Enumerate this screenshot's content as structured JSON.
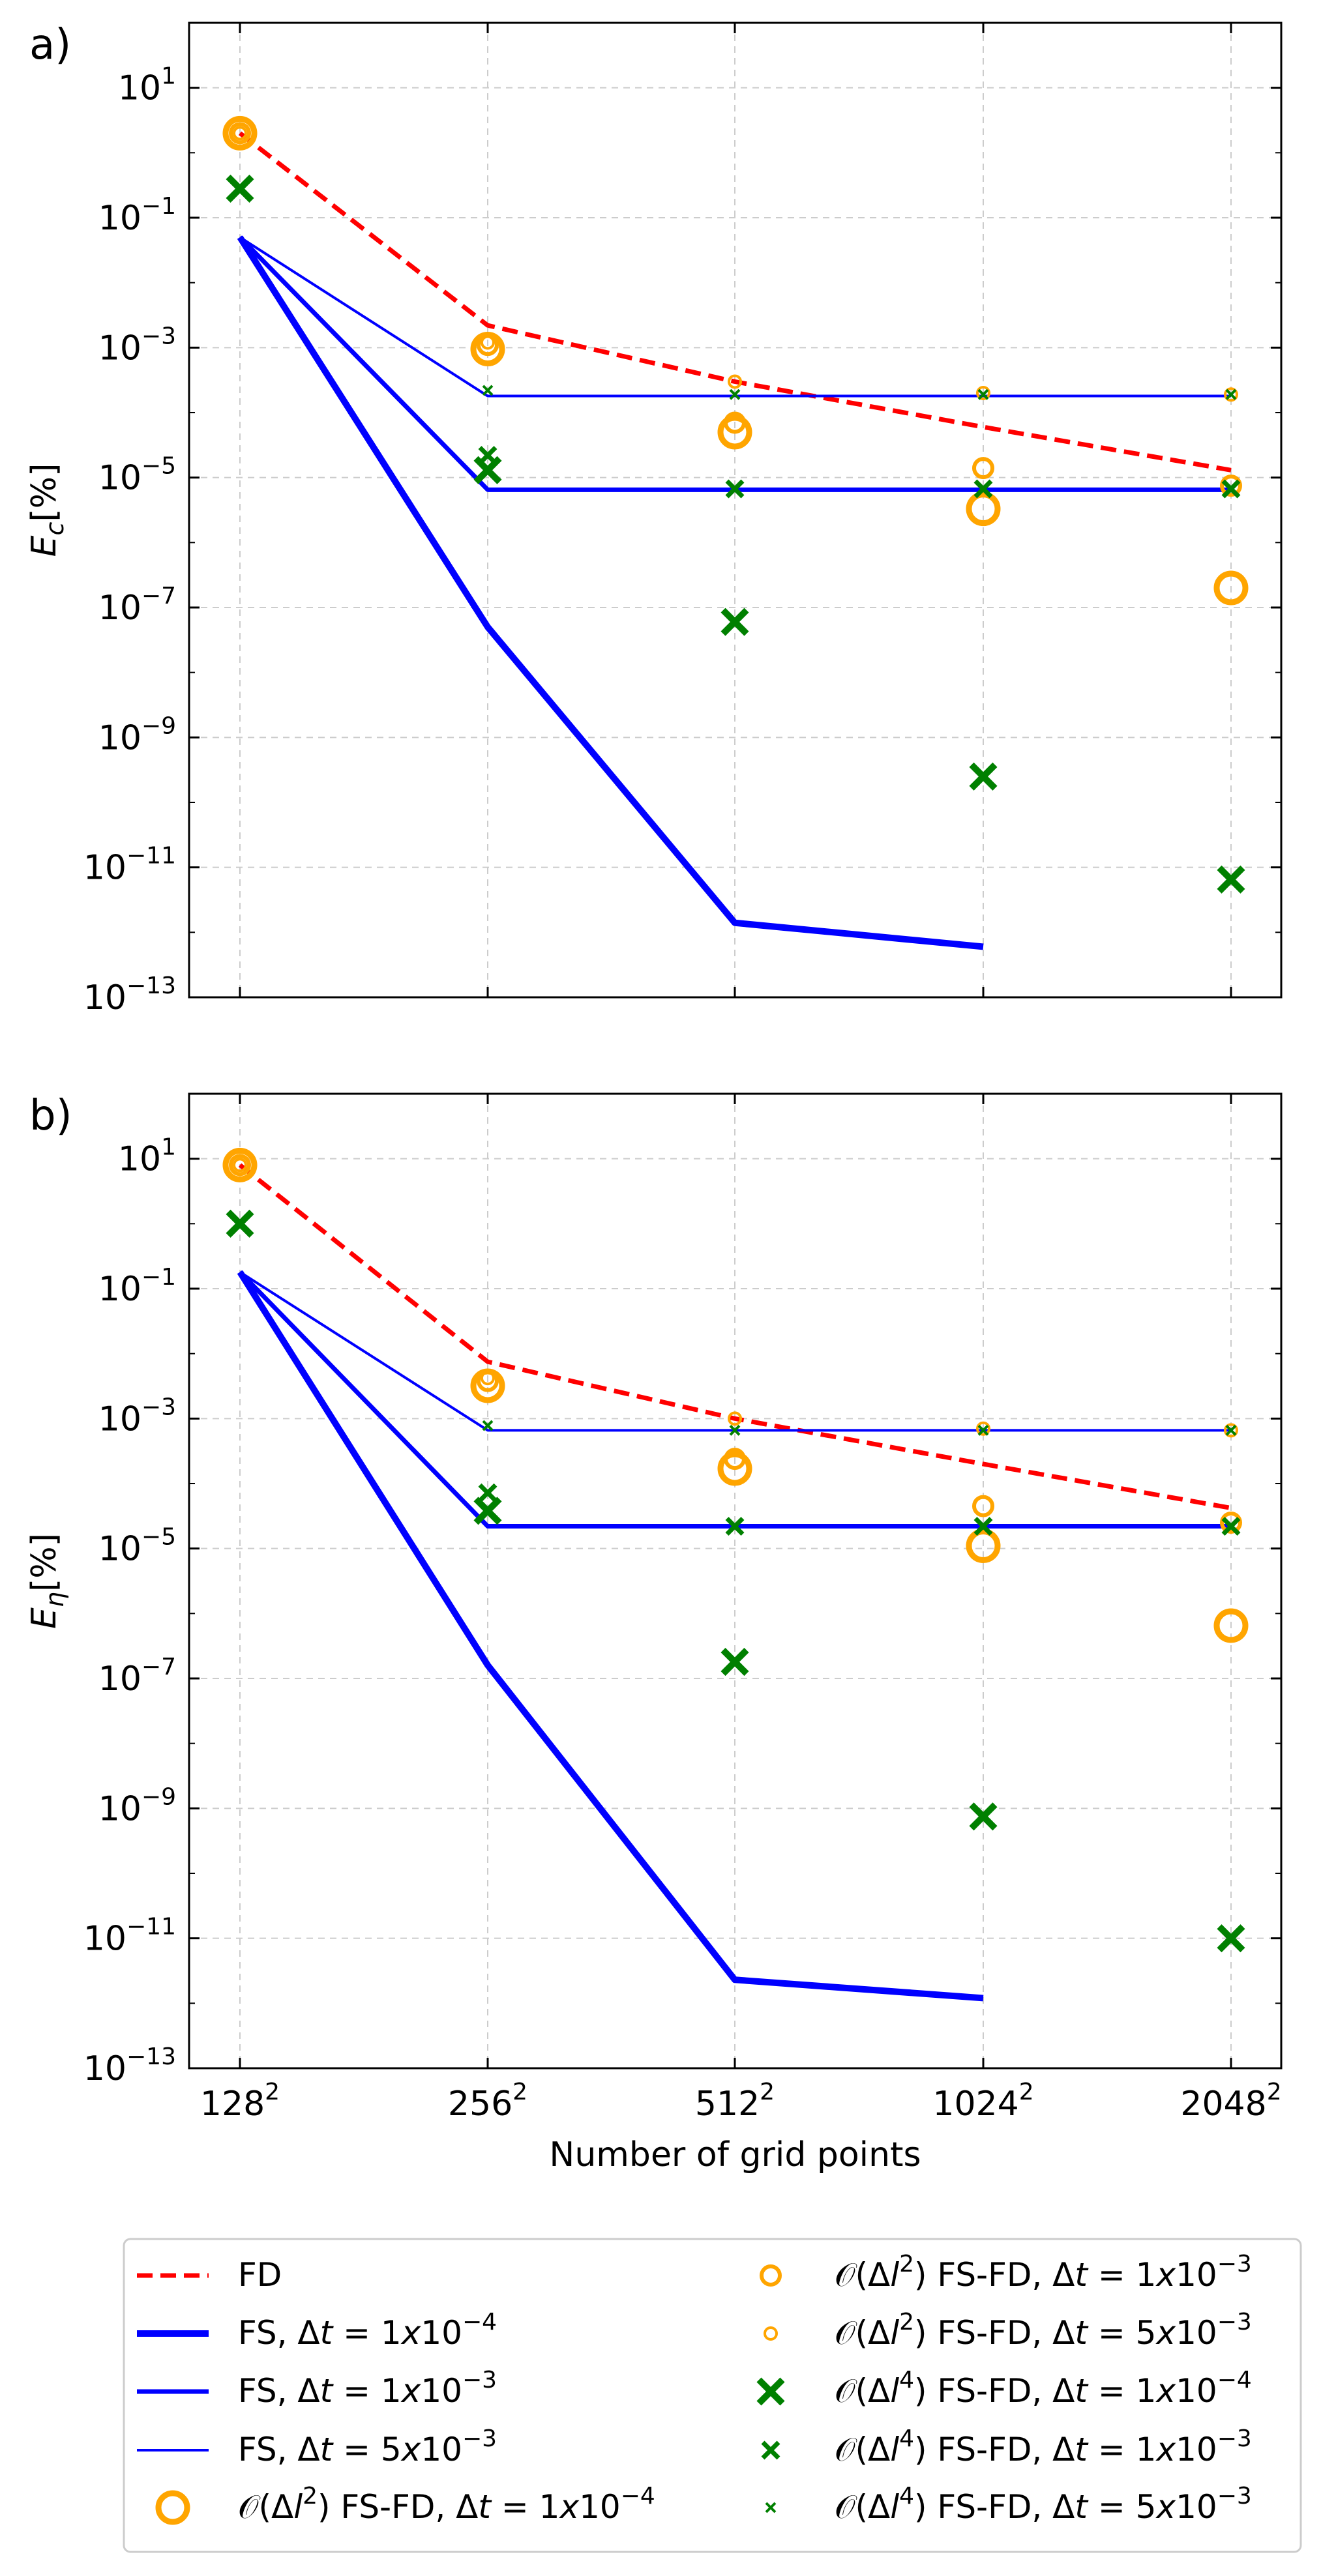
{
  "chart_data": [
    {
      "type": "line",
      "panel_label": "a)",
      "ylabel": "E_c[%]",
      "ylabel_main": "E",
      "ylabel_sub": "c",
      "ylabel_unit": "[%]",
      "xlabel": "",
      "yscale": "log",
      "ylim_exp": [
        -13,
        2
      ],
      "ytick_exponents": [
        1,
        -1,
        -3,
        -5,
        -7,
        -9,
        -11,
        -13
      ],
      "grid": true,
      "x_categories": [
        "128",
        "256",
        "512",
        "1024",
        "2048"
      ],
      "x_superscript": "2",
      "series": [
        {
          "key": "fd",
          "name": "FD",
          "kind": "line",
          "values": [
            2.0,
            0.0022,
            0.0003,
            6e-05,
            1.3e-05
          ]
        },
        {
          "key": "fs1",
          "name": "FS, Δt = 1x10^-4",
          "kind": "line",
          "values": [
            0.05,
            5e-08,
            1.4e-12,
            6e-13,
            null
          ]
        },
        {
          "key": "fs2",
          "name": "FS, Δt = 1x10^-3",
          "kind": "line",
          "values": [
            0.05,
            6.5e-06,
            6.5e-06,
            6.5e-06,
            6.5e-06
          ]
        },
        {
          "key": "fs3",
          "name": "FS, Δt = 5x10^-3",
          "kind": "line",
          "values": [
            0.05,
            0.00018,
            0.00018,
            0.00018,
            0.00018
          ]
        },
        {
          "key": "o2a",
          "name": "O(Δl^2) FS-FD, Δt = 1x10^-4",
          "kind": "circle",
          "values": [
            2.0,
            0.00095,
            5e-05,
            3.3e-06,
            2e-07
          ]
        },
        {
          "key": "o2b",
          "name": "O(Δl^2) FS-FD, Δt = 1x10^-3",
          "kind": "circle",
          "values": [
            2.0,
            0.0011,
            7e-05,
            1.4e-05,
            7.5e-06
          ]
        },
        {
          "key": "o2c",
          "name": "O(Δl^2) FS-FD, Δt = 5x10^-3",
          "kind": "circle",
          "values": [
            2.0,
            0.0012,
            0.0003,
            0.0002,
            0.00019
          ]
        },
        {
          "key": "o4a",
          "name": "O(Δl^4) FS-FD, Δt = 1x10^-4",
          "kind": "cross",
          "values": [
            0.28,
            1.3e-05,
            6e-08,
            2.5e-10,
            6.5e-12
          ]
        },
        {
          "key": "o4b",
          "name": "O(Δl^4) FS-FD, Δt = 1x10^-3",
          "kind": "cross",
          "values": [
            0.28,
            2.2e-05,
            6.7e-06,
            6.7e-06,
            6.7e-06
          ]
        },
        {
          "key": "o4c",
          "name": "O(Δl^4) FS-FD, Δt = 5x10^-3",
          "kind": "cross",
          "values": [
            null,
            0.00022,
            0.00019,
            0.00019,
            0.00019
          ]
        }
      ]
    },
    {
      "type": "line",
      "panel_label": "b)",
      "ylabel": "E_η[%]",
      "ylabel_main": "E",
      "ylabel_sub": "η",
      "ylabel_unit": "[%]",
      "xlabel": "Number of grid points",
      "yscale": "log",
      "ylim_exp": [
        -13,
        2
      ],
      "ytick_exponents": [
        1,
        -1,
        -3,
        -5,
        -7,
        -9,
        -11,
        -13
      ],
      "grid": true,
      "x_categories": [
        "128",
        "256",
        "512",
        "1024",
        "2048"
      ],
      "x_superscript": "2",
      "series": [
        {
          "key": "fd",
          "name": "FD",
          "kind": "line",
          "values": [
            8.0,
            0.0075,
            0.001,
            0.0002,
            4.2e-05
          ]
        },
        {
          "key": "fs1",
          "name": "FS, Δt = 1x10^-4",
          "kind": "line",
          "values": [
            0.18,
            1.6e-07,
            2.3e-12,
            1.2e-12,
            null
          ]
        },
        {
          "key": "fs2",
          "name": "FS, Δt = 1x10^-3",
          "kind": "line",
          "values": [
            0.18,
            2.2e-05,
            2.2e-05,
            2.2e-05,
            2.2e-05
          ]
        },
        {
          "key": "fs3",
          "name": "FS, Δt = 5x10^-3",
          "kind": "line",
          "values": [
            0.18,
            0.00066,
            0.00066,
            0.00066,
            0.00066
          ]
        },
        {
          "key": "o2a",
          "name": "O(Δl^2) FS-FD, Δt = 1x10^-4",
          "kind": "circle",
          "values": [
            8.0,
            0.0032,
            0.00017,
            1.1e-05,
            6.5e-07
          ]
        },
        {
          "key": "o2b",
          "name": "O(Δl^2) FS-FD, Δt = 1x10^-3",
          "kind": "circle",
          "values": [
            8.0,
            0.0038,
            0.00024,
            4.5e-05,
            2.5e-05
          ]
        },
        {
          "key": "o2c",
          "name": "O(Δl^2) FS-FD, Δt = 5x10^-3",
          "kind": "circle",
          "values": [
            8.0,
            0.0042,
            0.001,
            0.0007,
            0.00066
          ]
        },
        {
          "key": "o4a",
          "name": "O(Δl^4) FS-FD, Δt = 1x10^-4",
          "kind": "cross",
          "values": [
            1.0,
            3.8e-05,
            1.8e-07,
            7.5e-10,
            1e-11
          ]
        },
        {
          "key": "o4b",
          "name": "O(Δl^4) FS-FD, Δt = 1x10^-3",
          "kind": "cross",
          "values": [
            1.0,
            7.2e-05,
            2.2e-05,
            2.2e-05,
            2.2e-05
          ]
        },
        {
          "key": "o4c",
          "name": "O(Δl^4) FS-FD, Δt = 5x10^-3",
          "kind": "cross",
          "values": [
            null,
            0.00078,
            0.00066,
            0.00066,
            0.00066
          ]
        }
      ]
    }
  ],
  "styles": {
    "fd": {
      "color": "#ff0000",
      "width": 7,
      "dash": "24,12"
    },
    "fs1": {
      "color": "#0000ff",
      "width": 10
    },
    "fs2": {
      "color": "#0000ff",
      "width": 7
    },
    "fs3": {
      "color": "#0000ff",
      "width": 4
    },
    "o2a": {
      "color": "#ffa500",
      "size": 22,
      "width": 9
    },
    "o2b": {
      "color": "#ffa500",
      "size": 14,
      "width": 6
    },
    "o2c": {
      "color": "#ffa500",
      "size": 9,
      "width": 4
    },
    "o4a": {
      "color": "#008000",
      "size": 18,
      "width": 10
    },
    "o4b": {
      "color": "#008000",
      "size": 12,
      "width": 7
    },
    "o4c": {
      "color": "#008000",
      "size": 7,
      "width": 4
    },
    "grid_color": "#cccccc"
  },
  "legend": {
    "left": [
      {
        "key": "fd",
        "label": "FD"
      },
      {
        "key": "fs1",
        "label_pre": "FS, Δ",
        "label_t": "t",
        "label_eq": " = 1",
        "label_x": "x",
        "label_base": "10",
        "label_exp": "−4"
      },
      {
        "key": "fs2",
        "label_pre": "FS, Δ",
        "label_t": "t",
        "label_eq": " = 1",
        "label_x": "x",
        "label_base": "10",
        "label_exp": "−3"
      },
      {
        "key": "fs3",
        "label_pre": "FS, Δ",
        "label_t": "t",
        "label_eq": " = 5",
        "label_x": "x",
        "label_base": "10",
        "label_exp": "−3"
      },
      {
        "key": "o2a",
        "label_order": "𝒪(Δ",
        "label_l": "l",
        "label_pow": "2",
        "label_mid": ") FS-FD, Δ",
        "label_t": "t",
        "label_eq": " = 1",
        "label_x": "x",
        "label_base": "10",
        "label_exp": "−4"
      }
    ],
    "right": [
      {
        "key": "o2b",
        "label_order": "𝒪(Δ",
        "label_l": "l",
        "label_pow": "2",
        "label_mid": ") FS-FD, Δ",
        "label_t": "t",
        "label_eq": " = 1",
        "label_x": "x",
        "label_base": "10",
        "label_exp": "−3"
      },
      {
        "key": "o2c",
        "label_order": "𝒪(Δ",
        "label_l": "l",
        "label_pow": "2",
        "label_mid": ") FS-FD, Δ",
        "label_t": "t",
        "label_eq": " = 5",
        "label_x": "x",
        "label_base": "10",
        "label_exp": "−3"
      },
      {
        "key": "o4a",
        "label_order": "𝒪(Δ",
        "label_l": "l",
        "label_pow": "4",
        "label_mid": ") FS-FD, Δ",
        "label_t": "t",
        "label_eq": " = 1",
        "label_x": "x",
        "label_base": "10",
        "label_exp": "−4"
      },
      {
        "key": "o4b",
        "label_order": "𝒪(Δ",
        "label_l": "l",
        "label_pow": "4",
        "label_mid": ") FS-FD, Δ",
        "label_t": "t",
        "label_eq": " = 1",
        "label_x": "x",
        "label_base": "10",
        "label_exp": "−3"
      },
      {
        "key": "o4c",
        "label_order": "𝒪(Δ",
        "label_l": "l",
        "label_pow": "4",
        "label_mid": ") FS-FD, Δ",
        "label_t": "t",
        "label_eq": " = 5",
        "label_x": "x",
        "label_base": "10",
        "label_exp": "−3"
      }
    ]
  }
}
